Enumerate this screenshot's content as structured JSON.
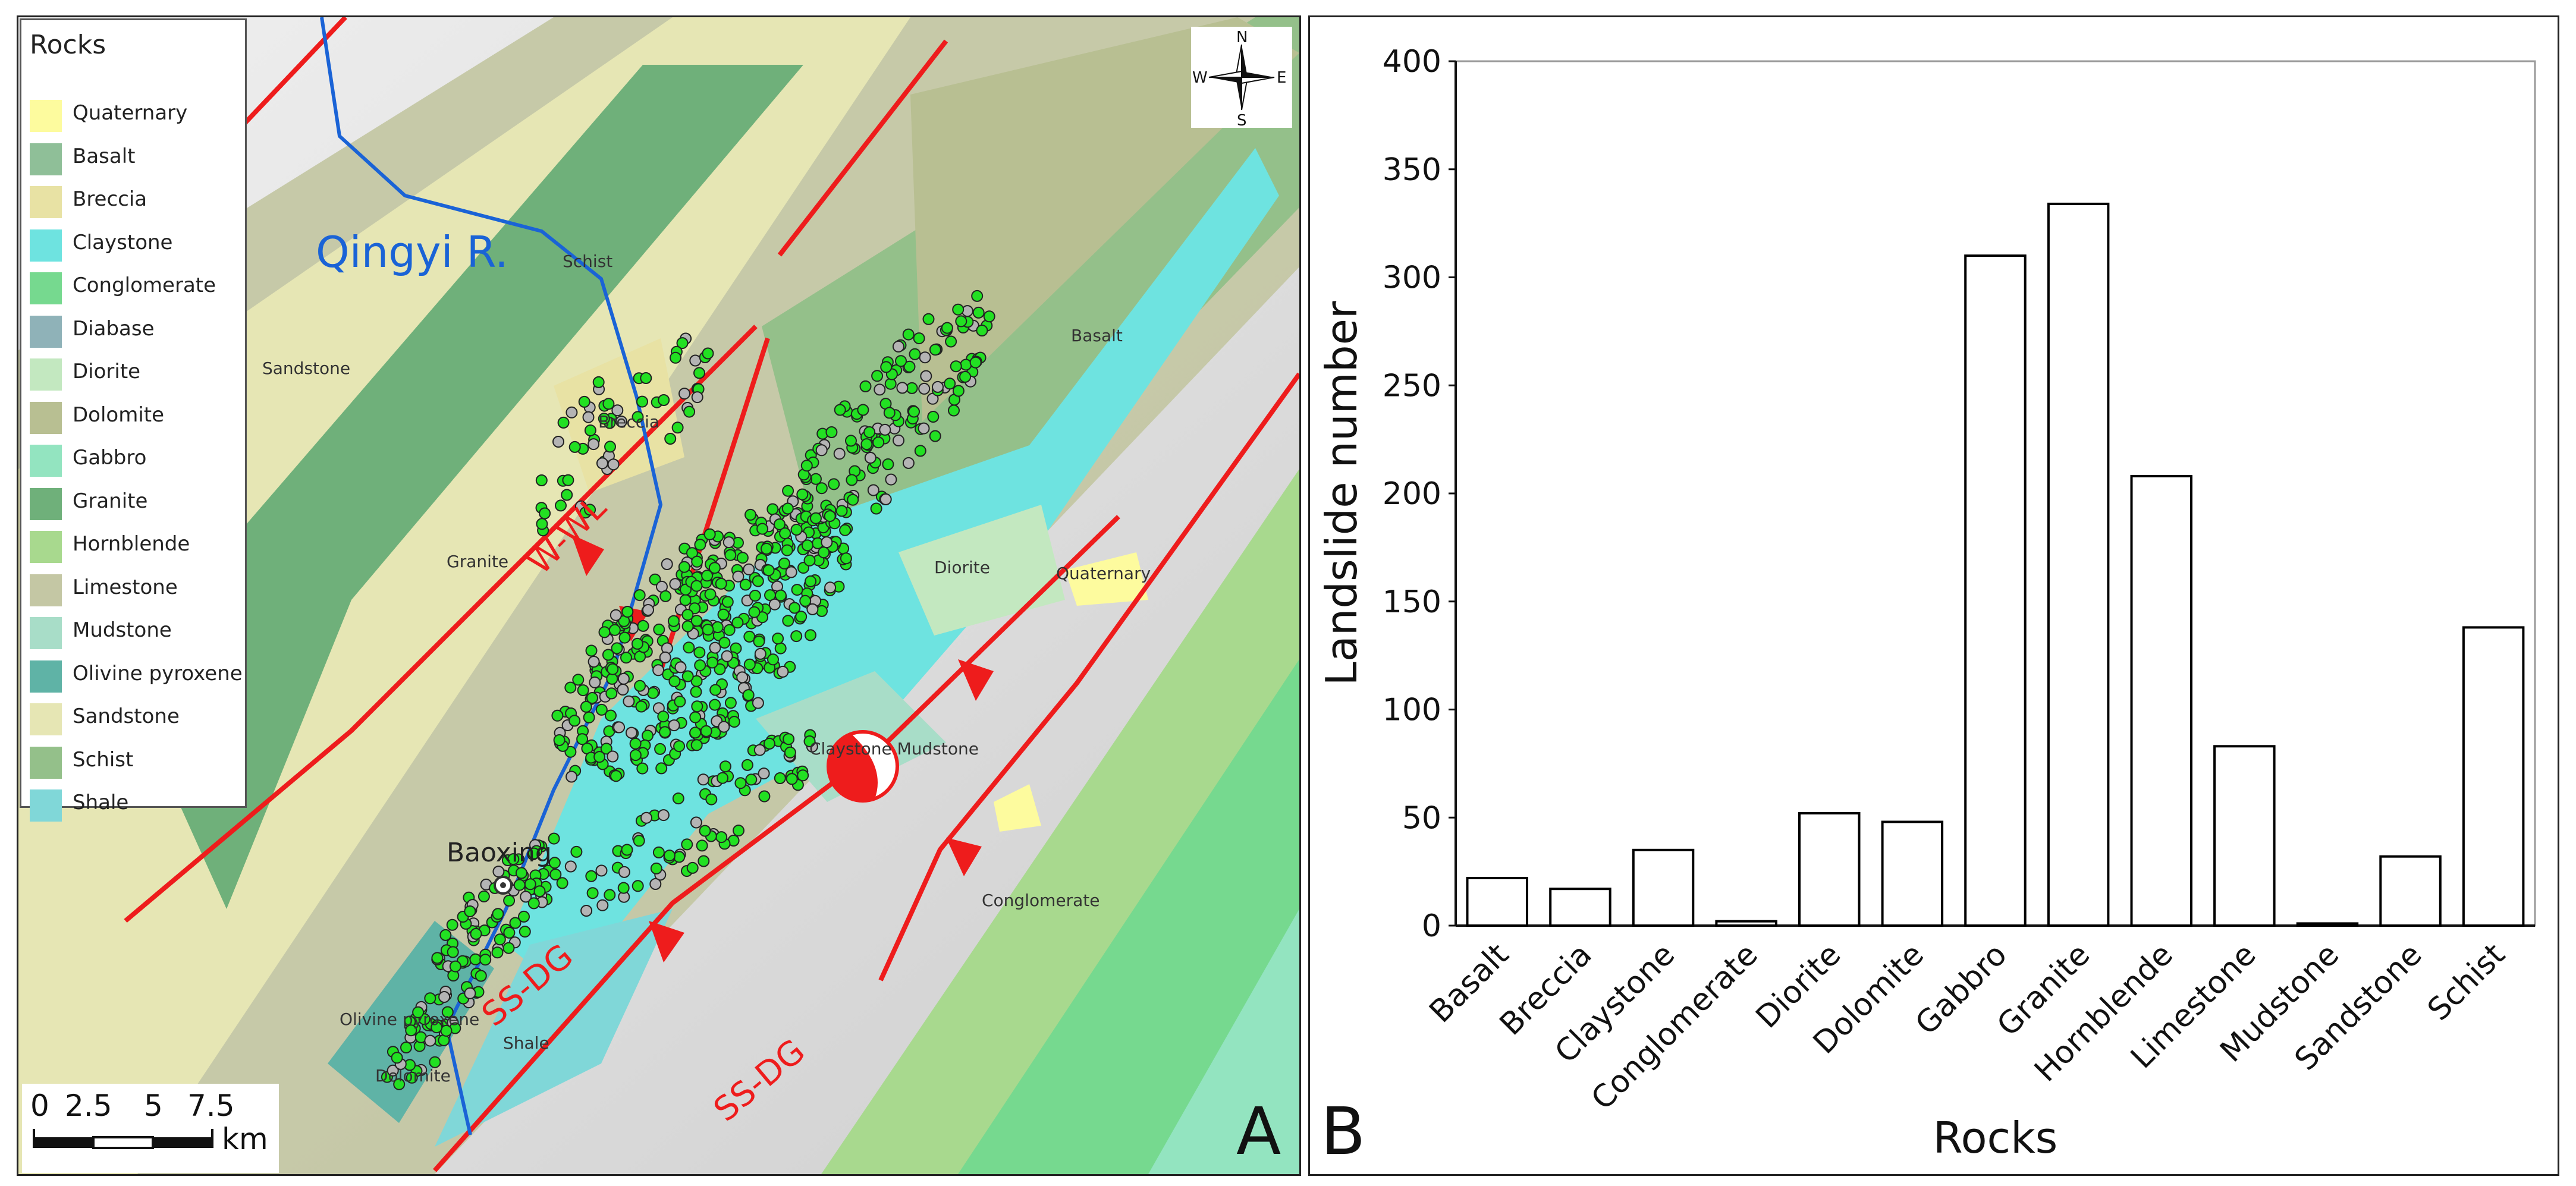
{
  "panel_a": {
    "letter": "A",
    "legend": {
      "title": "Rocks",
      "items": [
        {
          "label": "Quaternary",
          "color": "#fdfb9e"
        },
        {
          "label": "Basalt",
          "color": "#8fbf98"
        },
        {
          "label": "Breccia",
          "color": "#e8e2a4"
        },
        {
          "label": "Claystone",
          "color": "#6ee3e0"
        },
        {
          "label": "Conglomerate",
          "color": "#76d98f"
        },
        {
          "label": "Diabase",
          "color": "#8fb2b8"
        },
        {
          "label": "Diorite",
          "color": "#c3e8c0"
        },
        {
          "label": "Dolomite",
          "color": "#b8bf92"
        },
        {
          "label": "Gabbro",
          "color": "#93e4c0"
        },
        {
          "label": "Granite",
          "color": "#6fb07a"
        },
        {
          "label": "Hornblende",
          "color": "#a8d98e"
        },
        {
          "label": "Limestone",
          "color": "#c4c7a4"
        },
        {
          "label": "Mudstone",
          "color": "#a8ddc8"
        },
        {
          "label": "Olivine pyroxene",
          "color": "#5fb3a6"
        },
        {
          "label": "Sandstone",
          "color": "#e6e6b4"
        },
        {
          "label": "Schist",
          "color": "#94c08a"
        },
        {
          "label": "Shale",
          "color": "#80d7d8"
        }
      ]
    },
    "compass": {
      "n": "N",
      "s": "S",
      "e": "E",
      "w": "W"
    },
    "scale": {
      "ticks": [
        "0",
        "2.5",
        "5",
        "7.5"
      ],
      "unit": "km"
    },
    "labels": {
      "river": "Qingyi R.",
      "town": "Baoxing",
      "fault_ww": "W-WL",
      "fault_ssdg_1": "SS-DG",
      "fault_ssdg_2": "SS-DG",
      "schist": "Schist",
      "sandstone": "Sandstone",
      "breccia": "Breccia",
      "basalt": "Basalt",
      "granite": "Granite",
      "diorite": "Diorite",
      "quaternary": "Quaternary",
      "claystone_mudstone": "Claystone Mudstone",
      "conglomerate": "Conglomerate",
      "olivine": "Olivine pyroxene",
      "shale": "Shale",
      "dolomite": "Dolomite"
    },
    "colors": {
      "fault": "#ee1c1c",
      "river": "#1a63d6",
      "landslide_new": "#22e022",
      "landslide_old": "#b4b4b4"
    }
  },
  "panel_b": {
    "letter": "B",
    "chart_data": {
      "type": "bar",
      "categories": [
        "Basalt",
        "Breccia",
        "Claystone",
        "Conglomerate",
        "Diorite",
        "Dolomite",
        "Gabbro",
        "Granite",
        "Hornblende",
        "Limestone",
        "Mudstone",
        "Sandstone",
        "Schist"
      ],
      "values": [
        22,
        17,
        35,
        2,
        52,
        48,
        310,
        334,
        208,
        83,
        1,
        32,
        138
      ],
      "xlabel": "Rocks",
      "ylabel": "Landslide number",
      "ylim": [
        0,
        400
      ],
      "yticks": [
        0,
        50,
        100,
        150,
        200,
        250,
        300,
        350,
        400
      ],
      "grid": false,
      "bar_fill": "#ffffff",
      "bar_stroke": "#000000"
    }
  }
}
